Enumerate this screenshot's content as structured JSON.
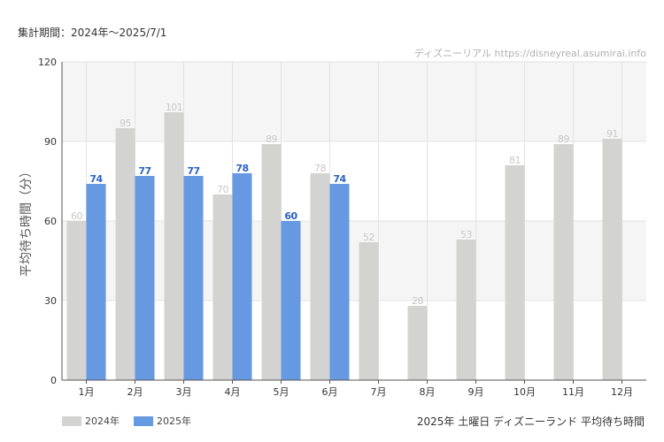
{
  "header": {
    "period": "集計期間：2024年～2025/7/1",
    "credit": "ディズニーリアル https://disneyreal.asumirai.info"
  },
  "footer": {
    "subtitle": "2025年 土曜日 ディズニーランド 平均待ち時間"
  },
  "colors": {
    "series_2024": "#d3d3d1",
    "series_2025": "#6699e1",
    "label_2024": "#c8c8c8",
    "label_2025": "#2a63c4",
    "band": "#f5f5f5",
    "grid": "#e2e2e2",
    "axis": "#555555"
  },
  "chart_data": {
    "type": "bar",
    "categories": [
      "1月",
      "2月",
      "3月",
      "4月",
      "5月",
      "6月",
      "7月",
      "8月",
      "9月",
      "10月",
      "11月",
      "12月"
    ],
    "series": [
      {
        "name": "2024年",
        "values": [
          60,
          95,
          101,
          70,
          89,
          78,
          52,
          28,
          53,
          81,
          89,
          91
        ]
      },
      {
        "name": "2025年",
        "values": [
          74,
          77,
          77,
          78,
          60,
          74,
          null,
          null,
          null,
          null,
          null,
          null
        ]
      }
    ],
    "ylabel": "平均待ち時間（分）",
    "yticks": [
      0,
      30,
      60,
      90,
      120
    ],
    "ylim": [
      0,
      120
    ],
    "grid": true,
    "legend": "bottom-left"
  }
}
